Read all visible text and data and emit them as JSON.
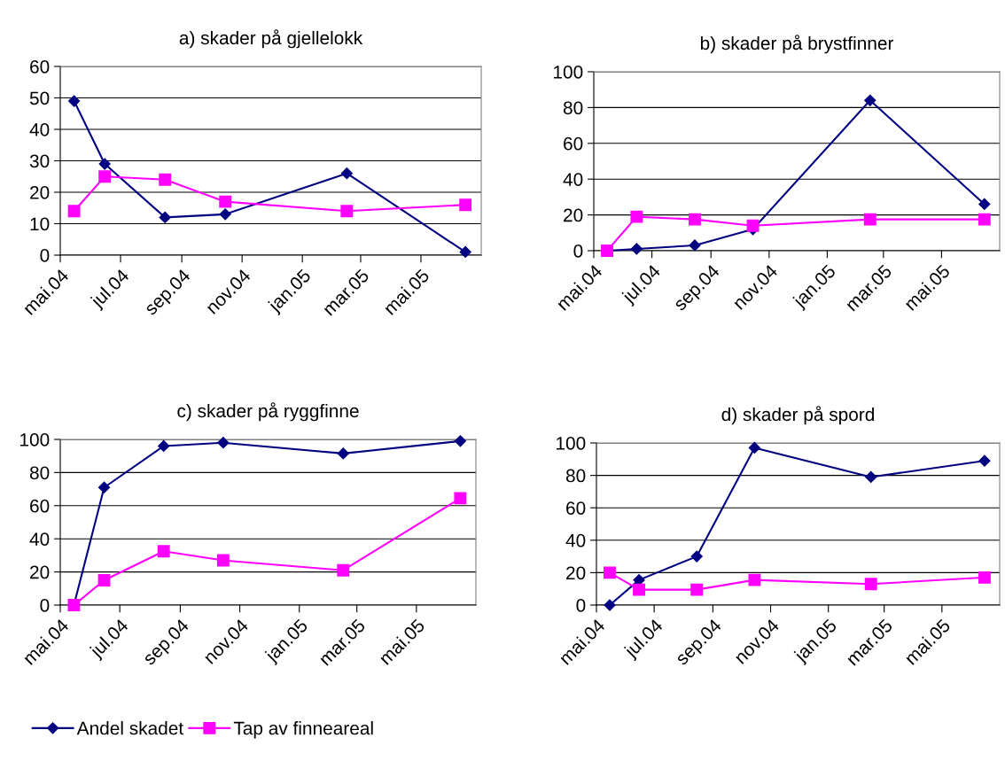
{
  "chart_data": [
    {
      "type": "line",
      "title": "a) skader på gjellelokk",
      "x": [
        "2004-05-15",
        "2004-06-15",
        "2004-08-15",
        "2004-10-15",
        "2005-02-15",
        "2005-06-15"
      ],
      "xlim": [
        "2004-05-01",
        "2005-07-01"
      ],
      "xticks": [
        {
          "value": "2004-05-01",
          "label": "mai.04"
        },
        {
          "value": "2004-07-01",
          "label": "jul.04"
        },
        {
          "value": "2004-09-01",
          "label": "sep.04"
        },
        {
          "value": "2004-11-01",
          "label": "nov.04"
        },
        {
          "value": "2005-01-01",
          "label": "jan.05"
        },
        {
          "value": "2005-03-01",
          "label": "mar.05"
        },
        {
          "value": "2005-05-01",
          "label": "mai.05"
        }
      ],
      "ylim": [
        0,
        60
      ],
      "yticks": [
        0,
        10,
        20,
        30,
        40,
        50,
        60
      ],
      "grid": "y",
      "legend": "bottom left",
      "series": [
        {
          "name": "Andel skadet",
          "color": "#000080",
          "marker": "diamond",
          "values": [
            49,
            29,
            12,
            13,
            26,
            1
          ]
        },
        {
          "name": "Tap av finneareal",
          "color": "#ff00ff",
          "marker": "square",
          "values": [
            14,
            25,
            24,
            17,
            14,
            16
          ]
        }
      ]
    },
    {
      "type": "line",
      "title": "b) skader på brystfinner",
      "x": [
        "2004-05-15",
        "2004-06-15",
        "2004-08-15",
        "2004-10-15",
        "2005-02-15",
        "2005-06-15"
      ],
      "xlim": [
        "2004-05-01",
        "2005-07-01"
      ],
      "xticks": [
        {
          "value": "2004-05-01",
          "label": "mai.04"
        },
        {
          "value": "2004-07-01",
          "label": "jul.04"
        },
        {
          "value": "2004-09-01",
          "label": "sep.04"
        },
        {
          "value": "2004-11-01",
          "label": "nov.04"
        },
        {
          "value": "2005-01-01",
          "label": "jan.05"
        },
        {
          "value": "2005-03-01",
          "label": "mar.05"
        },
        {
          "value": "2005-05-01",
          "label": "mai.05"
        }
      ],
      "ylim": [
        0,
        100
      ],
      "yticks": [
        0,
        20,
        40,
        60,
        80,
        100
      ],
      "grid": "y",
      "series": [
        {
          "color": "#000080",
          "marker": "diamond",
          "values": [
            0,
            1,
            3,
            12,
            84,
            26
          ]
        },
        {
          "color": "#ff00ff",
          "marker": "square",
          "values": [
            0,
            19,
            17.5,
            14,
            17.5,
            17.5
          ]
        }
      ]
    },
    {
      "type": "line",
      "title": "c) skader på ryggfinne",
      "x": [
        "2004-05-15",
        "2004-06-15",
        "2004-08-15",
        "2004-10-15",
        "2005-02-15",
        "2005-06-15"
      ],
      "xlim": [
        "2004-05-01",
        "2005-07-01"
      ],
      "xticks": [
        {
          "value": "2004-05-01",
          "label": "mai.04"
        },
        {
          "value": "2004-07-01",
          "label": "jul.04"
        },
        {
          "value": "2004-09-01",
          "label": "sep.04"
        },
        {
          "value": "2004-11-01",
          "label": "nov.04"
        },
        {
          "value": "2005-01-01",
          "label": "jan.05"
        },
        {
          "value": "2005-03-01",
          "label": "mar.05"
        },
        {
          "value": "2005-05-01",
          "label": "mai.05"
        }
      ],
      "ylim": [
        0,
        100
      ],
      "yticks": [
        0,
        20,
        40,
        60,
        80,
        100
      ],
      "grid": "y",
      "series": [
        {
          "color": "#000080",
          "marker": "diamond",
          "values": [
            0,
            71,
            96,
            98,
            91.5,
            99
          ]
        },
        {
          "color": "#ff00ff",
          "marker": "square",
          "values": [
            0,
            15,
            32.5,
            27,
            21,
            64.5
          ]
        }
      ]
    },
    {
      "type": "line",
      "title": "d) skader på spord",
      "x": [
        "2004-05-15",
        "2004-06-15",
        "2004-08-15",
        "2004-10-15",
        "2005-02-15",
        "2005-06-15"
      ],
      "xlim": [
        "2004-05-01",
        "2005-07-01"
      ],
      "xticks": [
        {
          "value": "2004-05-01",
          "label": "mai.04"
        },
        {
          "value": "2004-07-01",
          "label": "jul.04"
        },
        {
          "value": "2004-09-01",
          "label": "sep.04"
        },
        {
          "value": "2004-11-01",
          "label": "nov.04"
        },
        {
          "value": "2005-01-01",
          "label": "jan.05"
        },
        {
          "value": "2005-03-01",
          "label": "mar.05"
        },
        {
          "value": "2005-05-01",
          "label": "mai.05"
        }
      ],
      "ylim": [
        0,
        100
      ],
      "yticks": [
        0,
        20,
        40,
        60,
        80,
        100
      ],
      "grid": "y",
      "series": [
        {
          "color": "#000080",
          "marker": "diamond",
          "values": [
            0,
            15.5,
            30,
            97,
            79,
            89
          ]
        },
        {
          "color": "#ff00ff",
          "marker": "square",
          "values": [
            20,
            9.5,
            9.5,
            15.5,
            13,
            17
          ]
        }
      ]
    }
  ]
}
